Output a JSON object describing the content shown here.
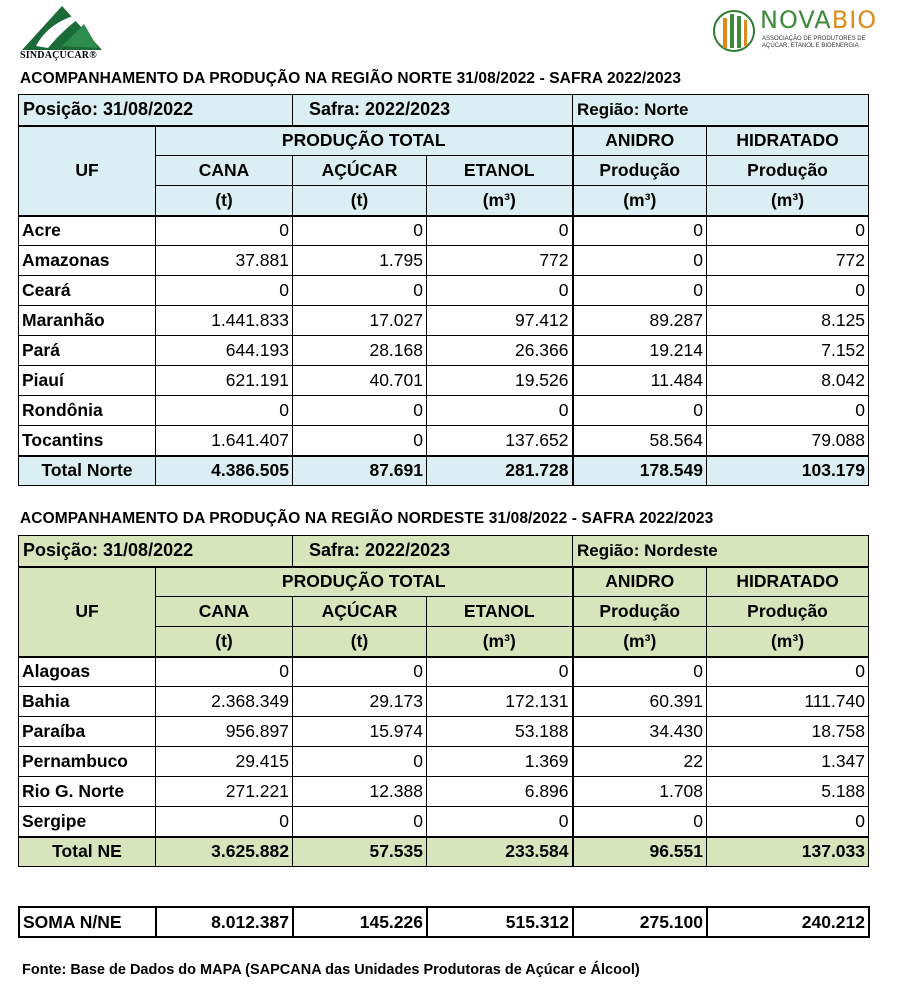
{
  "logos": {
    "left_brand": "SINDAÇÚCAR®",
    "right_name_a": "NOVA",
    "right_name_b": "BIO",
    "right_subtitle": "Associação de Produtores de Açúcar, Etanol e Bioenergia"
  },
  "colors": {
    "north_shade": "#daeef3",
    "northeast_shade": "#d8e4bc"
  },
  "north": {
    "title": "ACOMPANHAMENTO DA PRODUÇÃO NA REGIÃO NORTE 31/08/2022  - SAFRA 2022/2023",
    "posicao": "Posição: 31/08/2022",
    "safra": "Safra: 2022/2023",
    "regiao": "Região: Norte",
    "headers": {
      "uf": "UF",
      "producao_total": "PRODUÇÃO TOTAL",
      "anidro": "ANIDRO",
      "hidratado": "HIDRATADO",
      "cana": "CANA",
      "acucar": "AÇÚCAR",
      "etanol": "ETANOL",
      "producao_a": "Produção",
      "producao_h": "Produção",
      "unit_cana": "(t)",
      "unit_acucar": "(t)",
      "unit_etanol": "(m³)",
      "unit_anidro": "(m³)",
      "unit_hidratado": "(m³)"
    },
    "rows": [
      {
        "uf": "Acre",
        "cana": "0",
        "acucar": "0",
        "etanol": "0",
        "anidro": "0",
        "hidratado": "0"
      },
      {
        "uf": "Amazonas",
        "cana": "37.881",
        "acucar": "1.795",
        "etanol": "772",
        "anidro": "0",
        "hidratado": "772"
      },
      {
        "uf": "Ceará",
        "cana": "0",
        "acucar": "0",
        "etanol": "0",
        "anidro": "0",
        "hidratado": "0"
      },
      {
        "uf": "Maranhão",
        "cana": "1.441.833",
        "acucar": "17.027",
        "etanol": "97.412",
        "anidro": "89.287",
        "hidratado": "8.125"
      },
      {
        "uf": "Pará",
        "cana": "644.193",
        "acucar": "28.168",
        "etanol": "26.366",
        "anidro": "19.214",
        "hidratado": "7.152"
      },
      {
        "uf": "Piauí",
        "cana": "621.191",
        "acucar": "40.701",
        "etanol": "19.526",
        "anidro": "11.484",
        "hidratado": "8.042"
      },
      {
        "uf": "Rondônia",
        "cana": "0",
        "acucar": "0",
        "etanol": "0",
        "anidro": "0",
        "hidratado": "0"
      },
      {
        "uf": "Tocantins",
        "cana": "1.641.407",
        "acucar": "0",
        "etanol": "137.652",
        "anidro": "58.564",
        "hidratado": "79.088"
      }
    ],
    "total": {
      "label": "Total Norte",
      "cana": "4.386.505",
      "acucar": "87.691",
      "etanol": "281.728",
      "anidro": "178.549",
      "hidratado": "103.179"
    }
  },
  "northeast": {
    "title": "ACOMPANHAMENTO DA PRODUÇÃO NA REGIÃO NORDESTE 31/08/2022 - SAFRA 2022/2023",
    "posicao": "Posição:  31/08/2022",
    "safra": "Safra: 2022/2023",
    "regiao": "Região: Nordeste",
    "headers": {
      "uf": "UF",
      "producao_total": "PRODUÇÃO TOTAL",
      "anidro": "ANIDRO",
      "hidratado": "HIDRATADO",
      "cana": "CANA",
      "acucar": "AÇÚCAR",
      "etanol": "ETANOL",
      "producao_a": "Produção",
      "producao_h": "Produção",
      "unit_cana": "(t)",
      "unit_acucar": "(t)",
      "unit_etanol": "(m³)",
      "unit_anidro": "(m³)",
      "unit_hidratado": "(m³)"
    },
    "rows": [
      {
        "uf": "Alagoas",
        "cana": "0",
        "acucar": "0",
        "etanol": "0",
        "anidro": "0",
        "hidratado": "0"
      },
      {
        "uf": "Bahia",
        "cana": "2.368.349",
        "acucar": "29.173",
        "etanol": "172.131",
        "anidro": "60.391",
        "hidratado": "111.740"
      },
      {
        "uf": "Paraíba",
        "cana": "956.897",
        "acucar": "15.974",
        "etanol": "53.188",
        "anidro": "34.430",
        "hidratado": "18.758"
      },
      {
        "uf": "Pernambuco",
        "cana": "29.415",
        "acucar": "0",
        "etanol": "1.369",
        "anidro": "22",
        "hidratado": "1.347"
      },
      {
        "uf": "Rio G. Norte",
        "cana": "271.221",
        "acucar": "12.388",
        "etanol": "6.896",
        "anidro": "1.708",
        "hidratado": "5.188"
      },
      {
        "uf": "Sergipe",
        "cana": "0",
        "acucar": "0",
        "etanol": "0",
        "anidro": "0",
        "hidratado": "0"
      }
    ],
    "total": {
      "label": "Total NE",
      "cana": "3.625.882",
      "acucar": "57.535",
      "etanol": "233.584",
      "anidro": "96.551",
      "hidratado": "137.033"
    }
  },
  "soma": {
    "label": "SOMA N/NE",
    "cana": "8.012.387",
    "acucar": "145.226",
    "etanol": "515.312",
    "anidro": "275.100",
    "hidratado": "240.212"
  },
  "footer": "Fonte: Base de Dados do MAPA (SAPCANA das Unidades Produtoras de Açúcar e Álcool)"
}
